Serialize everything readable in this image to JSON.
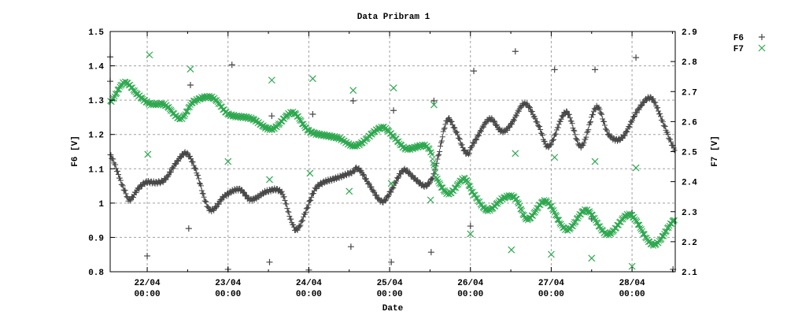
{
  "chart_data": {
    "type": "scatter",
    "title": "Data Pribram 1",
    "xlabel": "Date",
    "ylabel": "F6 [V]",
    "y2label": "F7 [V]",
    "xlim": [
      "21/04 13:00",
      "28/04 12:50"
    ],
    "ylim": [
      0.8,
      1.5
    ],
    "y2lim": [
      2.1,
      2.9
    ],
    "grid": true,
    "legend_position": "outside-top-right",
    "x_ticks": [
      {
        "date": "22/04",
        "time": "00:00"
      },
      {
        "date": "23/04",
        "time": "00:00"
      },
      {
        "date": "24/04",
        "time": "00:00"
      },
      {
        "date": "25/04",
        "time": "00:00"
      },
      {
        "date": "26/04",
        "time": "00:00"
      },
      {
        "date": "27/04",
        "time": "00:00"
      },
      {
        "date": "28/04",
        "time": "00:00"
      }
    ],
    "y_ticks": [
      "0.8",
      "0.9",
      "1",
      "1.1",
      "1.2",
      "1.3",
      "1.4",
      "1.5"
    ],
    "y2_ticks": [
      "2.1",
      "2.2",
      "2.3",
      "2.4",
      "2.5",
      "2.6",
      "2.7",
      "2.8",
      "2.9"
    ],
    "series": [
      {
        "name": "F6",
        "axis": "left",
        "marker": "plus",
        "color": "#474747",
        "trace": [
          [
            "21/04 13:00",
            1.14
          ],
          [
            "21/04 17:40",
            1.03
          ],
          [
            "21/04 18:50",
            1.01
          ],
          [
            "21/04 21:10",
            1.04
          ],
          [
            "21/04 23:30",
            1.06
          ],
          [
            "22/04 03:00",
            1.06
          ],
          [
            "22/04 05:20",
            1.07
          ],
          [
            "22/04 08:50",
            1.12
          ],
          [
            "22/04 11:40",
            1.145
          ],
          [
            "22/04 14:40",
            1.09
          ],
          [
            "22/04 17:30",
            1.0
          ],
          [
            "22/04 19:20",
            0.98
          ],
          [
            "22/04 22:50",
            1.02
          ],
          [
            "23/04 03:30",
            1.04
          ],
          [
            "23/04 06:40",
            1.01
          ],
          [
            "23/04 11:50",
            1.035
          ],
          [
            "23/04 16:00",
            1.03
          ],
          [
            "23/04 19:10",
            0.94
          ],
          [
            "23/04 20:40",
            0.925
          ],
          [
            "23/04 23:30",
            0.985
          ],
          [
            "24/04 01:50",
            1.04
          ],
          [
            "24/04 04:10",
            1.06
          ],
          [
            "24/04 08:50",
            1.075
          ],
          [
            "24/04 13:00",
            1.09
          ],
          [
            "24/04 14:40",
            1.1
          ],
          [
            "24/04 18:10",
            1.05
          ],
          [
            "24/04 21:40",
            1.005
          ],
          [
            "25/04 00:00",
            1.03
          ],
          [
            "25/04 04:00",
            1.095
          ],
          [
            "25/04 07:00",
            1.075
          ],
          [
            "25/04 10:30",
            1.05
          ],
          [
            "25/04 12:50",
            1.075
          ],
          [
            "25/04 14:00",
            1.12
          ],
          [
            "25/04 17:00",
            1.24
          ],
          [
            "25/04 19:20",
            1.215
          ],
          [
            "25/04 22:50",
            1.145
          ],
          [
            "26/04 00:30",
            1.17
          ],
          [
            "26/04 05:40",
            1.245
          ],
          [
            "26/04 09:10",
            1.21
          ],
          [
            "26/04 11:40",
            1.225
          ],
          [
            "26/04 16:10",
            1.29
          ],
          [
            "26/04 20:20",
            1.225
          ],
          [
            "26/04 23:10",
            1.165
          ],
          [
            "27/04 04:30",
            1.265
          ],
          [
            "27/04 08:50",
            1.165
          ],
          [
            "27/04 13:30",
            1.28
          ],
          [
            "27/04 17:00",
            1.2
          ],
          [
            "27/04 21:00",
            1.19
          ],
          [
            "28/04 01:40",
            1.27
          ],
          [
            "28/04 05:50",
            1.305
          ],
          [
            "28/04 09:50",
            1.22
          ],
          [
            "28/04 12:50",
            1.155
          ]
        ],
        "points": [
          [
            "21/04 13:00",
            1.426
          ],
          [
            "21/04 13:00",
            1.355
          ],
          [
            "22/04 00:00",
            0.846
          ],
          [
            "22/04 12:20",
            0.926
          ],
          [
            "22/04 12:50",
            1.344
          ],
          [
            "23/04 00:00",
            0.807
          ],
          [
            "23/04 01:10",
            1.403
          ],
          [
            "23/04 13:00",
            1.254
          ],
          [
            "23/04 12:20",
            0.828
          ],
          [
            "24/04 00:00",
            0.805
          ],
          [
            "24/04 01:10",
            1.259
          ],
          [
            "24/04 12:30",
            0.873
          ],
          [
            "24/04 13:10",
            1.298
          ],
          [
            "25/04 00:30",
            0.828
          ],
          [
            "25/04 01:10",
            1.27
          ],
          [
            "25/04 12:20",
            0.857
          ],
          [
            "25/04 13:10",
            1.298
          ],
          [
            "26/04 00:00",
            0.933
          ],
          [
            "26/04 01:00",
            1.385
          ],
          [
            "26/04 13:20",
            1.442
          ],
          [
            "27/04 01:00",
            1.389
          ],
          [
            "27/04 12:00",
            0.954
          ],
          [
            "27/04 13:00",
            1.389
          ],
          [
            "28/04 00:00",
            0.972
          ],
          [
            "28/04 01:10",
            1.424
          ],
          [
            "28/04 12:10",
            0.807
          ]
        ]
      },
      {
        "name": "F7",
        "axis": "right",
        "marker": "cross",
        "color": "#2ea84f",
        "trace": [
          [
            "21/04 13:00",
            2.665
          ],
          [
            "21/04 17:10",
            2.73
          ],
          [
            "21/04 21:10",
            2.69
          ],
          [
            "22/04 00:40",
            2.66
          ],
          [
            "22/04 05:20",
            2.655
          ],
          [
            "22/04 10:00",
            2.61
          ],
          [
            "22/04 13:30",
            2.665
          ],
          [
            "22/04 19:20",
            2.68
          ],
          [
            "23/04 00:00",
            2.625
          ],
          [
            "23/04 07:00",
            2.61
          ],
          [
            "23/04 13:00",
            2.575
          ],
          [
            "23/04 19:10",
            2.63
          ],
          [
            "23/04 23:30",
            2.575
          ],
          [
            "24/04 01:50",
            2.56
          ],
          [
            "24/04 08:50",
            2.545
          ],
          [
            "24/04 14:00",
            2.52
          ],
          [
            "24/04 21:40",
            2.58
          ],
          [
            "25/04 01:10",
            2.55
          ],
          [
            "25/04 04:40",
            2.51
          ],
          [
            "25/04 10:30",
            2.52
          ],
          [
            "25/04 12:20",
            2.495
          ],
          [
            "25/04 14:00",
            2.41
          ],
          [
            "25/04 17:30",
            2.36
          ],
          [
            "25/04 22:10",
            2.41
          ],
          [
            "26/04 00:30",
            2.365
          ],
          [
            "26/04 05:00",
            2.305
          ],
          [
            "26/04 09:50",
            2.345
          ],
          [
            "26/04 13:20",
            2.345
          ],
          [
            "26/04 16:50",
            2.275
          ],
          [
            "26/04 22:20",
            2.335
          ],
          [
            "27/04 04:30",
            2.24
          ],
          [
            "27/04 10:20",
            2.305
          ],
          [
            "27/04 16:40",
            2.225
          ],
          [
            "27/04 23:20",
            2.29
          ],
          [
            "28/04 06:20",
            2.19
          ],
          [
            "28/04 12:50",
            2.275
          ]
        ],
        "points": [
          [
            "22/04 00:40",
            2.822
          ],
          [
            "22/04 00:10",
            2.491
          ],
          [
            "22/04 12:50",
            2.775
          ],
          [
            "23/04 00:00",
            2.467
          ],
          [
            "23/04 13:00",
            2.738
          ],
          [
            "23/04 12:20",
            2.407
          ],
          [
            "24/04 01:10",
            2.743
          ],
          [
            "24/04 00:20",
            2.428
          ],
          [
            "24/04 13:10",
            2.704
          ],
          [
            "24/04 12:00",
            2.368
          ],
          [
            "25/04 01:10",
            2.712
          ],
          [
            "25/04 00:30",
            2.394
          ],
          [
            "25/04 13:10",
            2.656
          ],
          [
            "25/04 12:10",
            2.339
          ],
          [
            "26/04 00:00",
            2.226
          ],
          [
            "26/04 13:20",
            2.494
          ],
          [
            "26/04 12:10",
            2.173
          ],
          [
            "27/04 01:00",
            2.481
          ],
          [
            "27/04 00:00",
            2.158
          ],
          [
            "27/04 13:00",
            2.467
          ],
          [
            "27/04 12:00",
            2.145
          ],
          [
            "28/04 01:10",
            2.446
          ],
          [
            "28/04 00:00",
            2.118
          ]
        ]
      }
    ]
  }
}
